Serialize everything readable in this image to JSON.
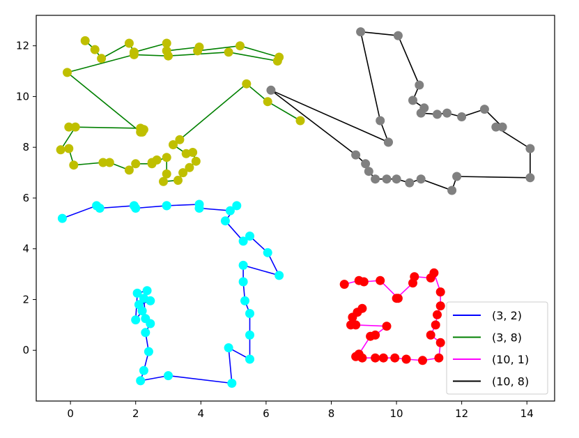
{
  "chart_data": {
    "type": "line",
    "title": "",
    "xlabel": "",
    "ylabel": "",
    "xlim": [
      -1.05,
      14.85
    ],
    "ylim": [
      -2.0,
      13.2
    ],
    "xticks": [
      0,
      2,
      4,
      6,
      8,
      10,
      12,
      14
    ],
    "yticks": [
      0,
      2,
      4,
      6,
      8,
      10,
      12
    ],
    "xtick_labels": [
      "0",
      "2",
      "4",
      "6",
      "8",
      "10",
      "12",
      "14"
    ],
    "ytick_labels": [
      "0",
      "2",
      "4",
      "6",
      "8",
      "10",
      "12"
    ],
    "grid": false,
    "legend_position": "lower-right",
    "series": [
      {
        "name": "(3, 2)",
        "line_color": "#0000ff",
        "marker_color": "#00ffff",
        "points": [
          [
            -0.25,
            5.2
          ],
          [
            0.8,
            5.7
          ],
          [
            0.9,
            5.6
          ],
          [
            1.95,
            5.7
          ],
          [
            2.0,
            5.6
          ],
          [
            2.95,
            5.7
          ],
          [
            2.95,
            5.7
          ],
          [
            3.95,
            5.75
          ],
          [
            3.95,
            5.6
          ],
          [
            4.9,
            5.5
          ],
          [
            5.1,
            5.7
          ],
          [
            4.75,
            5.1
          ],
          [
            5.3,
            4.3
          ],
          [
            5.5,
            4.5
          ],
          [
            6.05,
            3.85
          ],
          [
            6.4,
            2.95
          ],
          [
            5.3,
            3.35
          ],
          [
            5.3,
            2.7
          ],
          [
            5.35,
            1.95
          ],
          [
            5.5,
            1.45
          ],
          [
            5.5,
            0.6
          ],
          [
            5.5,
            -0.35
          ],
          [
            4.85,
            0.1
          ],
          [
            4.95,
            -1.3
          ],
          [
            3.0,
            -1.0
          ],
          [
            2.15,
            -1.2
          ],
          [
            2.25,
            -0.8
          ],
          [
            2.4,
            -0.05
          ],
          [
            2.3,
            0.7
          ],
          [
            2.45,
            1.05
          ],
          [
            2.3,
            1.25
          ],
          [
            2.25,
            2.05
          ],
          [
            2.45,
            1.95
          ],
          [
            2.1,
            1.8
          ],
          [
            2.2,
            1.55
          ],
          [
            2.0,
            1.2
          ],
          [
            2.05,
            2.25
          ],
          [
            2.35,
            2.35
          ]
        ]
      },
      {
        "name": "(3, 8)",
        "line_color": "#008000",
        "marker_color": "#bfbf00",
        "points": [
          [
            0.45,
            12.2
          ],
          [
            0.75,
            11.85
          ],
          [
            0.95,
            11.5
          ],
          [
            1.8,
            12.1
          ],
          [
            1.95,
            11.75
          ],
          [
            2.95,
            12.1
          ],
          [
            2.95,
            11.8
          ],
          [
            3.95,
            11.95
          ],
          [
            3.9,
            11.8
          ],
          [
            5.2,
            12.0
          ],
          [
            6.4,
            11.55
          ],
          [
            6.35,
            11.4
          ],
          [
            4.85,
            11.75
          ],
          [
            3.0,
            11.6
          ],
          [
            1.95,
            11.65
          ],
          [
            -0.1,
            10.95
          ],
          [
            2.15,
            8.6
          ],
          [
            2.2,
            8.6
          ],
          [
            2.25,
            8.7
          ],
          [
            2.15,
            8.75
          ],
          [
            -0.05,
            8.8
          ],
          [
            0.15,
            8.8
          ],
          [
            -0.3,
            7.9
          ],
          [
            -0.05,
            7.95
          ],
          [
            0.1,
            7.3
          ],
          [
            1.0,
            7.4
          ],
          [
            1.2,
            7.4
          ],
          [
            1.8,
            7.1
          ],
          [
            2.0,
            7.35
          ],
          [
            2.5,
            7.35
          ],
          [
            2.65,
            7.5
          ],
          [
            2.5,
            7.4
          ],
          [
            2.95,
            7.6
          ],
          [
            2.95,
            6.95
          ],
          [
            2.85,
            6.65
          ],
          [
            3.3,
            6.7
          ],
          [
            3.45,
            7.0
          ],
          [
            3.65,
            7.2
          ],
          [
            3.85,
            7.45
          ],
          [
            3.75,
            7.8
          ],
          [
            3.55,
            7.75
          ],
          [
            3.15,
            8.1
          ],
          [
            3.35,
            8.3
          ],
          [
            5.4,
            10.5
          ],
          [
            6.05,
            9.8
          ],
          [
            7.05,
            9.05
          ]
        ]
      },
      {
        "name": "(10, 1)",
        "line_color": "#ff00ff",
        "marker_color": "#ff0000",
        "points": [
          [
            8.4,
            2.6
          ],
          [
            8.85,
            2.75
          ],
          [
            9.0,
            2.7
          ],
          [
            9.5,
            2.75
          ],
          [
            10.05,
            2.05
          ],
          [
            10.0,
            2.05
          ],
          [
            10.5,
            2.65
          ],
          [
            10.55,
            2.9
          ],
          [
            11.05,
            2.85
          ],
          [
            11.15,
            3.05
          ],
          [
            11.35,
            2.3
          ],
          [
            11.35,
            1.75
          ],
          [
            11.25,
            1.4
          ],
          [
            11.2,
            1.0
          ],
          [
            11.05,
            0.6
          ],
          [
            11.35,
            0.3
          ],
          [
            11.3,
            -0.3
          ],
          [
            10.8,
            -0.4
          ],
          [
            10.3,
            -0.35
          ],
          [
            9.95,
            -0.3
          ],
          [
            9.6,
            -0.3
          ],
          [
            9.35,
            -0.3
          ],
          [
            8.95,
            -0.3
          ],
          [
            8.75,
            -0.25
          ],
          [
            8.85,
            -0.15
          ],
          [
            9.2,
            0.55
          ],
          [
            9.35,
            0.6
          ],
          [
            9.7,
            0.95
          ],
          [
            8.75,
            1.0
          ],
          [
            8.6,
            1.0
          ],
          [
            8.8,
            1.5
          ],
          [
            8.65,
            1.3
          ],
          [
            8.95,
            1.65
          ]
        ]
      },
      {
        "name": "(10, 8)",
        "line_color": "#000000",
        "marker_color": "#808080",
        "points": [
          [
            9.75,
            8.2
          ],
          [
            6.15,
            10.25
          ],
          [
            8.75,
            7.7
          ],
          [
            9.05,
            7.35
          ],
          [
            9.15,
            7.05
          ],
          [
            9.35,
            6.75
          ],
          [
            9.7,
            6.75
          ],
          [
            10.0,
            6.75
          ],
          [
            10.4,
            6.6
          ],
          [
            10.75,
            6.75
          ],
          [
            11.7,
            6.3
          ],
          [
            11.85,
            6.85
          ],
          [
            14.1,
            6.8
          ],
          [
            14.1,
            7.95
          ],
          [
            13.05,
            8.8
          ],
          [
            13.25,
            8.8
          ],
          [
            12.7,
            9.5
          ],
          [
            12.0,
            9.2
          ],
          [
            11.55,
            9.35
          ],
          [
            11.25,
            9.3
          ],
          [
            10.75,
            9.35
          ],
          [
            10.85,
            9.55
          ],
          [
            10.5,
            9.85
          ],
          [
            10.7,
            10.45
          ],
          [
            10.05,
            12.4
          ],
          [
            8.9,
            12.55
          ],
          [
            9.5,
            9.05
          ],
          [
            9.75,
            8.2
          ]
        ]
      }
    ]
  }
}
